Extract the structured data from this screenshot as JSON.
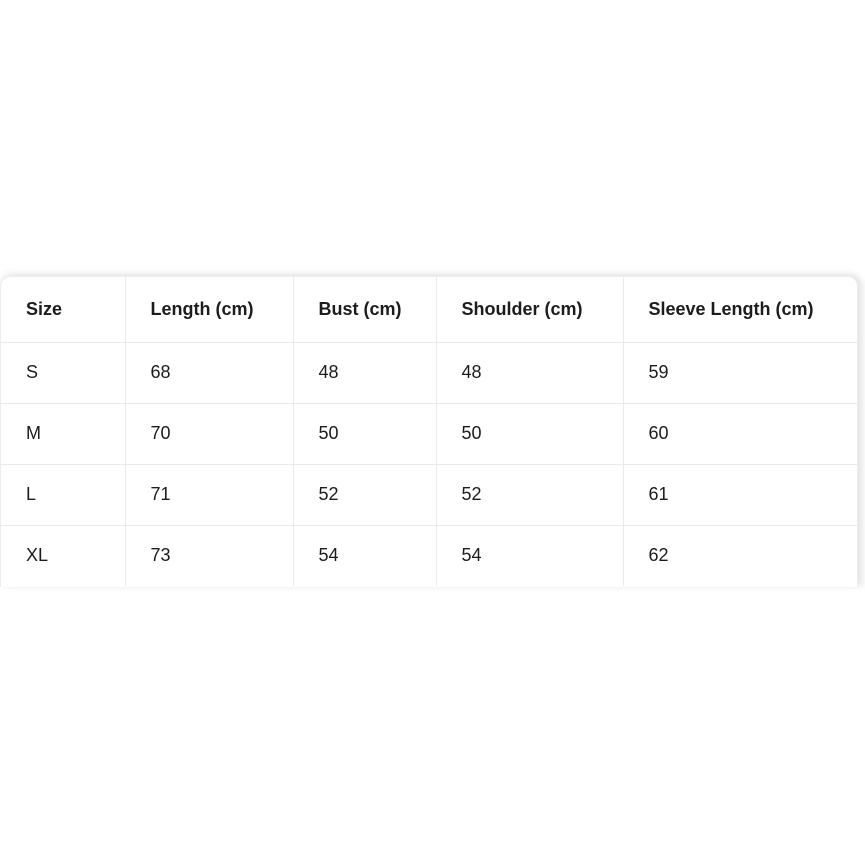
{
  "size_chart": {
    "headers": [
      "Size",
      "Length (cm)",
      "Bust (cm)",
      "Shoulder (cm)",
      "Sleeve Length (cm)"
    ],
    "rows": [
      {
        "size": "S",
        "length": "68",
        "bust": "48",
        "shoulder": "48",
        "sleeve": "59"
      },
      {
        "size": "M",
        "length": "70",
        "bust": "50",
        "shoulder": "50",
        "sleeve": "60"
      },
      {
        "size": "L",
        "length": "71",
        "bust": "52",
        "shoulder": "52",
        "sleeve": "61"
      },
      {
        "size": "XL",
        "length": "73",
        "bust": "54",
        "shoulder": "54",
        "sleeve": "62"
      }
    ],
    "colors": {
      "background": "#ffffff",
      "card_background": "#ffffff",
      "grid_line": "#eaeaea",
      "card_border": "#ededed",
      "text": "#1c1c1c"
    }
  }
}
